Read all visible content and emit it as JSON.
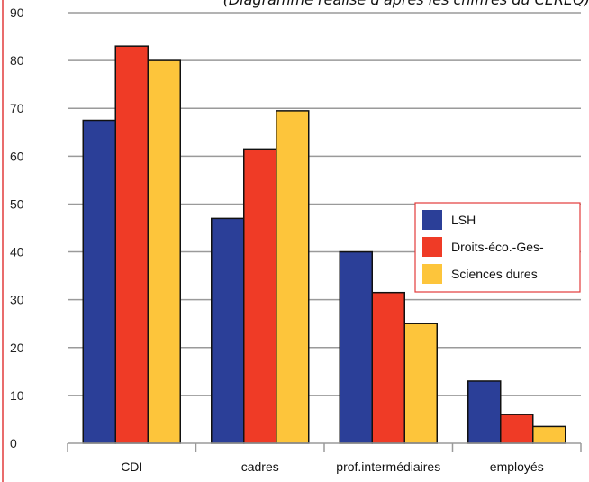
{
  "chart_data": {
    "type": "bar",
    "title": "(Diagramme réalisé d'après les chiffres du CEREQ)",
    "categories": [
      "CDI",
      "cadres",
      "prof.intermédiaires",
      "employés"
    ],
    "series": [
      {
        "name": "LSH",
        "values": [
          67.5,
          47,
          40,
          13
        ]
      },
      {
        "name": "Droits-éco.-Ges-",
        "values": [
          83,
          61.5,
          31.5,
          6
        ]
      },
      {
        "name": "Sciences dures",
        "values": [
          80,
          69.5,
          25,
          3.5
        ]
      }
    ],
    "ylim": [
      0,
      90
    ],
    "yticks": [
      "0",
      "10",
      "20",
      "30",
      "40",
      "50",
      "60",
      "70",
      "80",
      "90"
    ],
    "grid": true,
    "legend_position": "right",
    "colors": {
      "series": [
        "#2b3f98",
        "#ef3b26",
        "#fdc53b"
      ],
      "grid": "#9a9a9a",
      "frame": "#e23b3b"
    }
  }
}
